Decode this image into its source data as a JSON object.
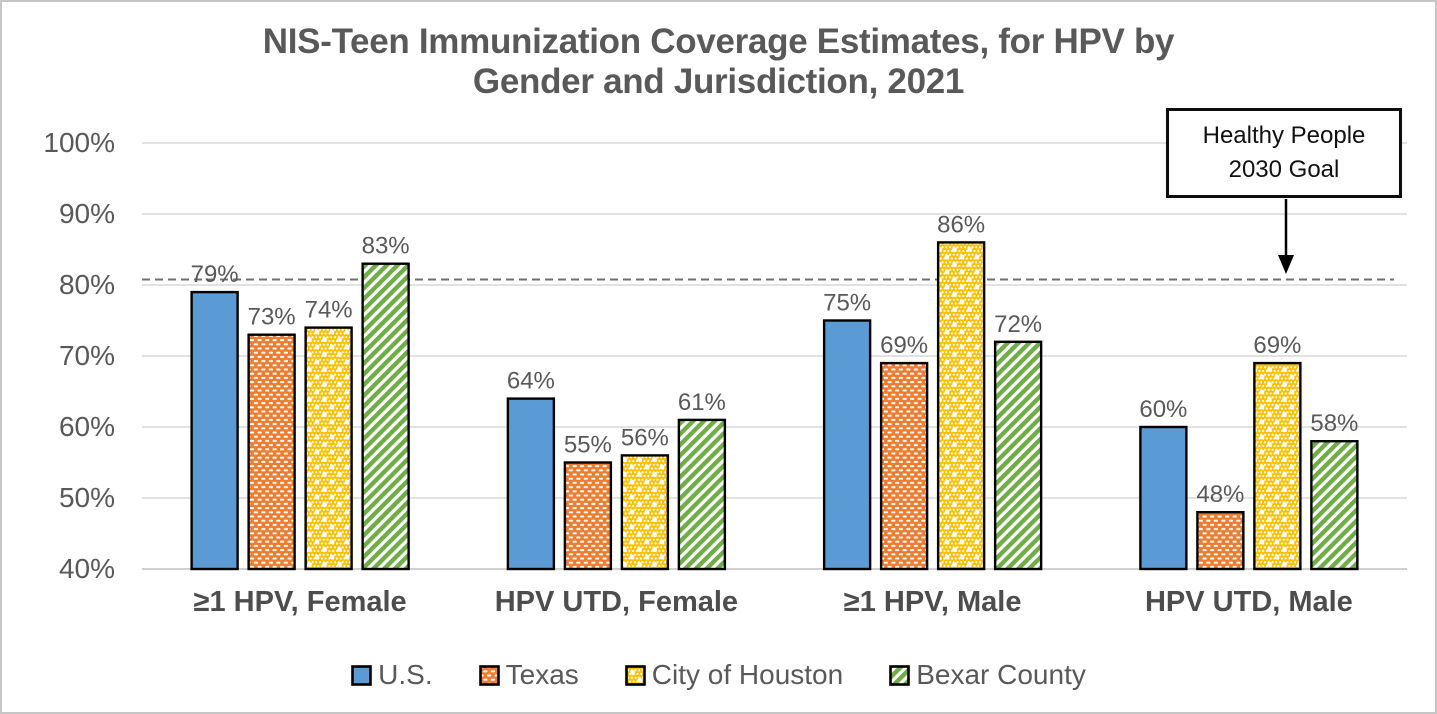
{
  "chart_data": {
    "type": "bar",
    "title": "NIS-Teen Immunization Coverage Estimates, for HPV by Gender and Jurisdiction, 2021",
    "title_lines": [
      "NIS-Teen Immunization Coverage Estimates, for HPV by",
      "Gender and Jurisdiction, 2021"
    ],
    "categories": [
      "≥1 HPV, Female",
      "HPV UTD, Female",
      "≥1 HPV, Male",
      "HPV UTD, Male"
    ],
    "series": [
      {
        "name": "U.S.",
        "values": [
          79,
          64,
          75,
          60
        ],
        "color": "#5B9BD5",
        "pattern": "solid"
      },
      {
        "name": "Texas",
        "values": [
          73,
          55,
          69,
          48
        ],
        "color": "#ED7D31",
        "pattern": "dashes"
      },
      {
        "name": "City of Houston",
        "values": [
          74,
          56,
          86,
          69
        ],
        "color": "#FFC000",
        "pattern": "dots"
      },
      {
        "name": "Bexar County",
        "values": [
          83,
          61,
          72,
          58
        ],
        "color": "#70AD47",
        "pattern": "diagonal-stripes"
      }
    ],
    "data_label_format": "{value}%",
    "y_axis": {
      "min": 40,
      "max": 100,
      "tick_step": 10,
      "tick_labels": [
        "40%",
        "50%",
        "60%",
        "70%",
        "80%",
        "90%",
        "100%"
      ]
    },
    "x_axis": {
      "labels_bold": true
    },
    "gridlines": "horizontal",
    "legend_position": "bottom",
    "reference_line": {
      "value": 80,
      "style": "dashed"
    },
    "annotation": {
      "line1": "Healthy People",
      "line2": "2030 Goal"
    },
    "colors": {
      "title_text": "#595959",
      "axis_text": "#595959",
      "category_text": "#4d4d4d",
      "value_label_text": "#595959",
      "gridline": "#D9D9D9",
      "baseline": "#C0C0C0",
      "reference_line": "#707070",
      "bar_border": "#000000",
      "annotation_border": "#0d0d0d",
      "legend_text": "#595959"
    }
  }
}
